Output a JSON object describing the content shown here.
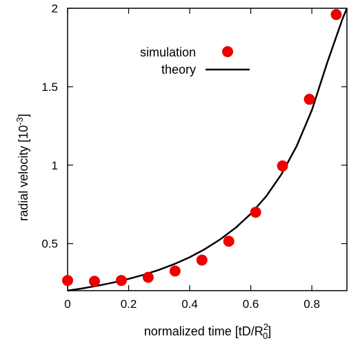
{
  "chart_data": {
    "type": "scatter",
    "xlabel": "normalized time [tD/R",
    "xlabel_sub": "0",
    "xlabel_sup": "2",
    "xlabel_end": "]",
    "ylabel": "radial velocity [10",
    "ylabel_sup": "-3",
    "ylabel_end": "]",
    "xlim": [
      0,
      0.915
    ],
    "ylim": [
      0.2,
      2.0
    ],
    "x_ticks": [
      0,
      0.2,
      0.4,
      0.6,
      0.8
    ],
    "x_tick_labels": [
      "0",
      "0.2",
      "0.4",
      "0.6",
      "0.8"
    ],
    "y_ticks": [
      0.5,
      1,
      1.5,
      2
    ],
    "y_tick_labels": [
      "0.5",
      "1",
      "1.5",
      "2"
    ],
    "legend_position": "top-center",
    "series": [
      {
        "name": "simulation",
        "kind": "points",
        "color": "#ee0000",
        "x": [
          0,
          0.088,
          0.176,
          0.264,
          0.352,
          0.44,
          0.528,
          0.616,
          0.704,
          0.792,
          0.88
        ],
        "y": [
          0.265,
          0.26,
          0.265,
          0.285,
          0.325,
          0.395,
          0.515,
          0.7,
          0.995,
          1.42,
          1.96
        ]
      },
      {
        "name": "theory",
        "kind": "line",
        "color": "#000000",
        "x": [
          0,
          0.05,
          0.1,
          0.15,
          0.2,
          0.25,
          0.3,
          0.35,
          0.4,
          0.45,
          0.5,
          0.55,
          0.6,
          0.65,
          0.7,
          0.75,
          0.8,
          0.85,
          0.9,
          0.915
        ],
        "y": [
          0.2,
          0.215,
          0.232,
          0.252,
          0.275,
          0.302,
          0.333,
          0.37,
          0.413,
          0.465,
          0.527,
          0.6,
          0.69,
          0.8,
          0.94,
          1.12,
          1.35,
          1.65,
          1.93,
          2.0
        ]
      }
    ]
  }
}
